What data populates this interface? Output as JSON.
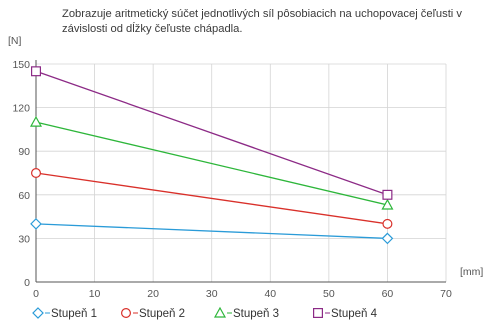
{
  "description": "Zobrazuje aritmetický súčet jednotlivých síl pôsobiacich na uchopovacej čeľusti v závislosti od dĺžky čeľuste chápadla.",
  "chart_data": {
    "type": "line",
    "title": "",
    "xlabel": "[mm]",
    "ylabel": "[N]",
    "xlim": [
      0,
      70
    ],
    "ylim": [
      0,
      150
    ],
    "x_ticks": [
      "0",
      "10",
      "20",
      "30",
      "40",
      "50",
      "60",
      "70"
    ],
    "y_ticks": [
      "0",
      "30",
      "60",
      "90",
      "120",
      "150"
    ],
    "grid": true,
    "legend_position": "bottom",
    "series": [
      {
        "name": "Stupeň 1",
        "marker": "diamond",
        "color": "#2a9bd8",
        "x": [
          0,
          60
        ],
        "y": [
          40,
          30
        ]
      },
      {
        "name": "Stupeň 2",
        "marker": "circle",
        "color": "#d9302a",
        "x": [
          0,
          60
        ],
        "y": [
          75,
          40
        ]
      },
      {
        "name": "Stupeň 3",
        "marker": "triangle",
        "color": "#2db63a",
        "x": [
          0,
          60
        ],
        "y": [
          110,
          53
        ]
      },
      {
        "name": "Stupeň 4",
        "marker": "square",
        "color": "#8c2a86",
        "x": [
          0,
          60
        ],
        "y": [
          145,
          60
        ]
      }
    ]
  }
}
